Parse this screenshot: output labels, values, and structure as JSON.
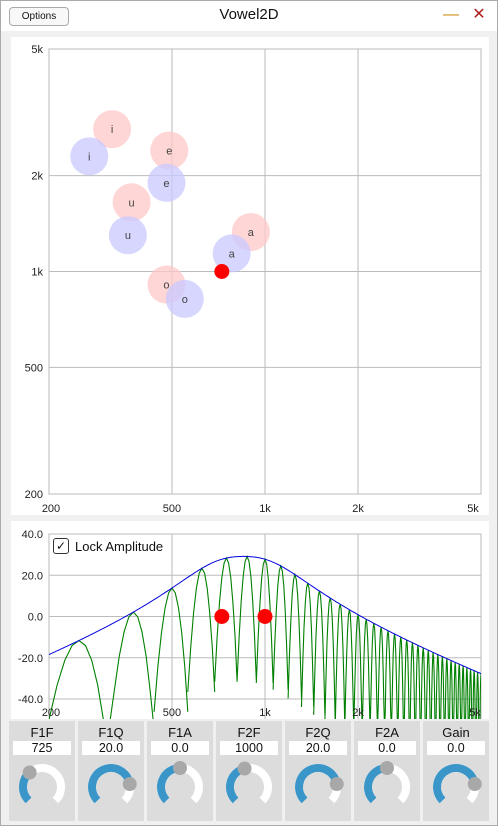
{
  "window": {
    "title": "Vowel2D",
    "options_label": "Options",
    "minimize_label": "—",
    "close_label": "✕"
  },
  "colors": {
    "accent_knob": "#3a96c8",
    "pad_red": "#ff0000",
    "vowel_pink": "#ffc8c8",
    "vowel_blue": "#c8c8ff",
    "spectrum_green": "#008000",
    "envelope_blue": "#0000dd"
  },
  "vowel_pad": {
    "x_axis": {
      "scale": "log",
      "range": [
        200,
        5000
      ],
      "ticks": [
        "200",
        "500",
        "1k",
        "2k",
        "5k"
      ]
    },
    "y_axis": {
      "scale": "log",
      "range": [
        200,
        5000
      ],
      "ticks": [
        "200",
        "500",
        "1k",
        "2k",
        "5k"
      ]
    },
    "vowels_set1": [
      {
        "label": "i",
        "f1": 320,
        "f2": 2800
      },
      {
        "label": "e",
        "f1": 490,
        "f2": 2400
      },
      {
        "label": "u",
        "f1": 370,
        "f2": 1650
      },
      {
        "label": "a",
        "f1": 900,
        "f2": 1330
      },
      {
        "label": "o",
        "f1": 480,
        "f2": 910
      }
    ],
    "vowels_set2": [
      {
        "label": "i",
        "f1": 270,
        "f2": 2300
      },
      {
        "label": "e",
        "f1": 480,
        "f2": 1900
      },
      {
        "label": "u",
        "f1": 360,
        "f2": 1300
      },
      {
        "label": "a",
        "f1": 780,
        "f2": 1140
      },
      {
        "label": "o",
        "f1": 550,
        "f2": 820
      }
    ],
    "cursor": {
      "f1": 725,
      "f2": 1000
    }
  },
  "spectrum": {
    "lock_amplitude_label": "Lock Amplitude",
    "lock_checked": "✓",
    "y_ticks": [
      "40.0",
      "20.0",
      "0.0",
      "-20.0",
      "-40.0"
    ],
    "y_range": [
      -40,
      40
    ],
    "x_ticks": [
      "200",
      "500",
      "1k",
      "2k",
      "5k"
    ],
    "x_range": [
      200,
      5000
    ],
    "markers": [
      {
        "freq": 725,
        "gain": 0.0
      },
      {
        "freq": 1000,
        "gain": 0.0
      }
    ]
  },
  "knobs": [
    {
      "name": "F1F",
      "value": "725",
      "level": 0.35
    },
    {
      "name": "F1Q",
      "value": "20.0",
      "level": 0.8
    },
    {
      "name": "F1A",
      "value": "0.0",
      "level": 0.5
    },
    {
      "name": "F2F",
      "value": "1000",
      "level": 0.45
    },
    {
      "name": "F2Q",
      "value": "20.0",
      "level": 0.8
    },
    {
      "name": "F2A",
      "value": "0.0",
      "level": 0.5
    },
    {
      "name": "Gain",
      "value": "0.0",
      "level": 0.8
    }
  ]
}
